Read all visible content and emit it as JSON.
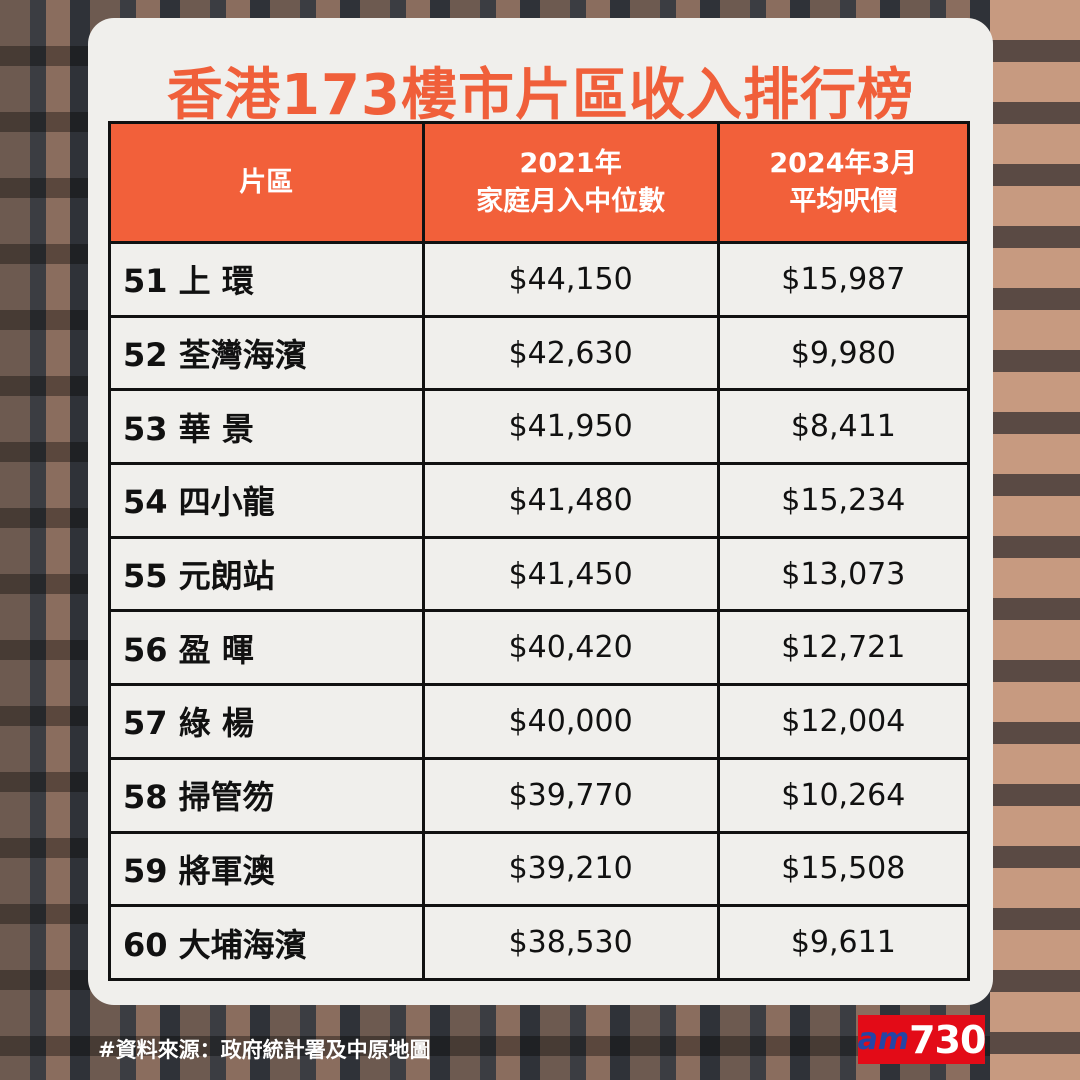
{
  "title": "香港173樓市片區收入排行榜",
  "headers": [
    "片區",
    "2021年\n家庭月入中位數",
    "2024年3月\n平均呎價"
  ],
  "header_lines": [
    [
      "片區"
    ],
    [
      "2021年",
      "家庭月入中位數"
    ],
    [
      "2024年3月",
      "平均呎價"
    ]
  ],
  "rows": [
    {
      "district": "51 上 環",
      "income": "$44,150",
      "price": "$15,987"
    },
    {
      "district": "52 荃灣海濱",
      "income": "$42,630",
      "price": "$9,980"
    },
    {
      "district": "53 華 景",
      "income": "$41,950",
      "price": "$8,411"
    },
    {
      "district": "54 四小龍",
      "income": "$41,480",
      "price": "$15,234"
    },
    {
      "district": "55 元朗站",
      "income": "$41,450",
      "price": "$13,073"
    },
    {
      "district": "56 盈 暉",
      "income": "$40,420",
      "price": "$12,721"
    },
    {
      "district": "57 綠 楊",
      "income": "$40,000",
      "price": "$12,004"
    },
    {
      "district": "58 掃管笏",
      "income": "$39,770",
      "price": "$10,264"
    },
    {
      "district": "59 將軍澳",
      "income": "$39,210",
      "price": "$15,508"
    },
    {
      "district": "60 大埔海濱",
      "income": "$38,530",
      "price": "$9,611"
    }
  ],
  "footer": "#資料來源：政府統計署及中原地圖",
  "logo": {
    "am": "am",
    "num": "730"
  },
  "colors": {
    "accent": "#f2603a",
    "card": "#f0efec",
    "logo_red": "#e30b17",
    "logo_blue": "#2445a6"
  }
}
